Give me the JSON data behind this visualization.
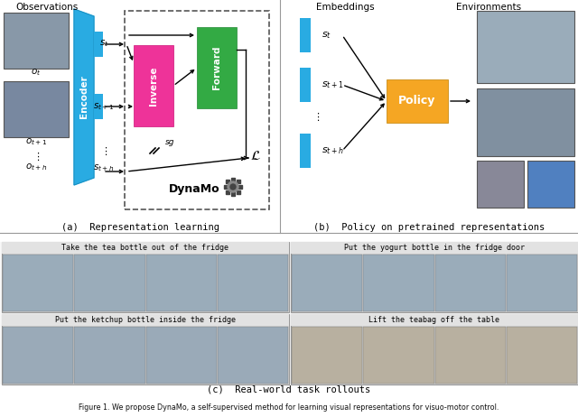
{
  "panel_a_label": "(a)  Representation learning",
  "panel_b_label": "(b)  Policy on pretrained representations",
  "panel_c_label": "(c)  Real-world task rollouts",
  "caption": "Figure 1. We propose DynaMo, a self-supervised method for learning visual representations for visuo-motor control.",
  "obs_label": "Observations",
  "embed_label": "Embeddings",
  "env_label": "Environments",
  "encoder_label": "Encoder",
  "inverse_label": "Inverse",
  "forward_label": "Forward",
  "dynamo_label": "DynaMo",
  "policy_label": "Policy",
  "bg_color": "#ffffff",
  "encoder_color": "#29abe2",
  "inverse_color": "#ee3399",
  "forward_color": "#33aa44",
  "policy_color": "#f5a623",
  "task_labels": [
    "Take the tea bottle out of the fridge",
    "Put the yogurt bottle in the fridge door",
    "Put the ketchup bottle inside the fridge",
    "Lift the teabag off the table"
  ],
  "img_colors_top": [
    "#8898a8",
    "#7888a0",
    "#8898a8",
    "#7888a0"
  ],
  "img_colors_robot_arm": [
    "#a0b0b8",
    "#90a0b0"
  ],
  "img_colors_hand": [
    "#b8b0a0",
    "#b0a898"
  ],
  "cell_img_colors": [
    "#9aacba",
    "#8899aa",
    "#b5b0a8",
    "#c0b8a8"
  ],
  "task_bg_color": "#d8d8d8",
  "task_title_bg": "#e0e0e0",
  "task_border_color": "#aaaaaa"
}
